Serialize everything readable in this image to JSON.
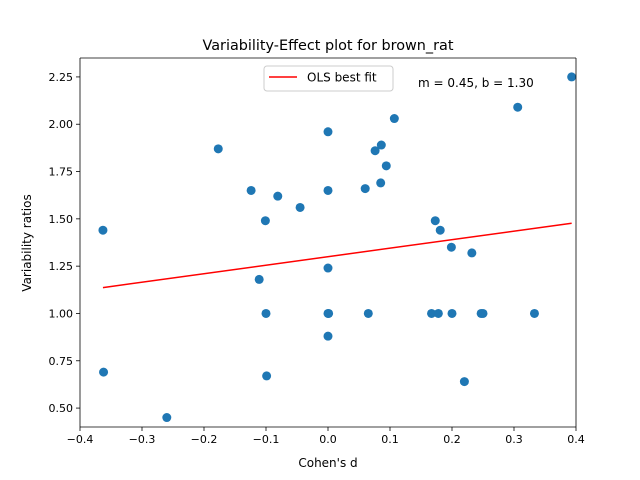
{
  "chart_data": {
    "type": "scatter",
    "title": "Variability-Effect plot for brown_rat",
    "xlabel": "Cohen's d",
    "ylabel": "Variability ratios",
    "xlim": [
      -0.4,
      0.4
    ],
    "ylim": [
      0.4,
      2.35
    ],
    "xticks": [
      -0.4,
      -0.3,
      -0.2,
      -0.1,
      0.0,
      0.1,
      0.2,
      0.3,
      0.4
    ],
    "xtick_labels": [
      "−0.4",
      "−0.3",
      "−0.2",
      "−0.1",
      "0.0",
      "0.1",
      "0.2",
      "0.3",
      "0.4"
    ],
    "yticks": [
      0.5,
      0.75,
      1.0,
      1.25,
      1.5,
      1.75,
      2.0,
      2.25
    ],
    "ytick_labels": [
      "0.50",
      "0.75",
      "1.00",
      "1.25",
      "1.50",
      "1.75",
      "2.00",
      "2.25"
    ],
    "grid": false,
    "legend_position": "top-center",
    "annotation": "m = 0.45, b = 1.30",
    "fit_line": {
      "name": "OLS best fit",
      "color": "#ff0000",
      "slope": 0.45,
      "intercept": 1.3,
      "x_range": [
        -0.363,
        0.393
      ]
    },
    "points_color": "#1f77b4",
    "points": [
      [
        -0.363,
        1.44
      ],
      [
        -0.362,
        0.69
      ],
      [
        -0.26,
        0.45
      ],
      [
        -0.177,
        1.87
      ],
      [
        -0.124,
        1.65
      ],
      [
        -0.111,
        1.18
      ],
      [
        -0.101,
        1.49
      ],
      [
        -0.1,
        1.0
      ],
      [
        -0.099,
        0.67
      ],
      [
        -0.081,
        1.62
      ],
      [
        -0.045,
        1.56
      ],
      [
        0.0,
        1.96
      ],
      [
        0.0,
        1.65
      ],
      [
        0.0,
        1.24
      ],
      [
        0.0,
        1.0
      ],
      [
        0.001,
        1.0
      ],
      [
        0.0,
        0.88
      ],
      [
        0.06,
        1.66
      ],
      [
        0.065,
        1.0
      ],
      [
        0.076,
        1.86
      ],
      [
        0.086,
        1.89
      ],
      [
        0.085,
        1.69
      ],
      [
        0.094,
        1.78
      ],
      [
        0.107,
        2.03
      ],
      [
        0.167,
        1.0
      ],
      [
        0.173,
        1.49
      ],
      [
        0.178,
        1.0
      ],
      [
        0.181,
        1.44
      ],
      [
        0.199,
        1.35
      ],
      [
        0.2,
        1.0
      ],
      [
        0.22,
        0.64
      ],
      [
        0.232,
        1.32
      ],
      [
        0.247,
        1.0
      ],
      [
        0.25,
        1.0
      ],
      [
        0.306,
        2.09
      ],
      [
        0.333,
        1.0
      ],
      [
        0.393,
        2.25
      ]
    ]
  }
}
